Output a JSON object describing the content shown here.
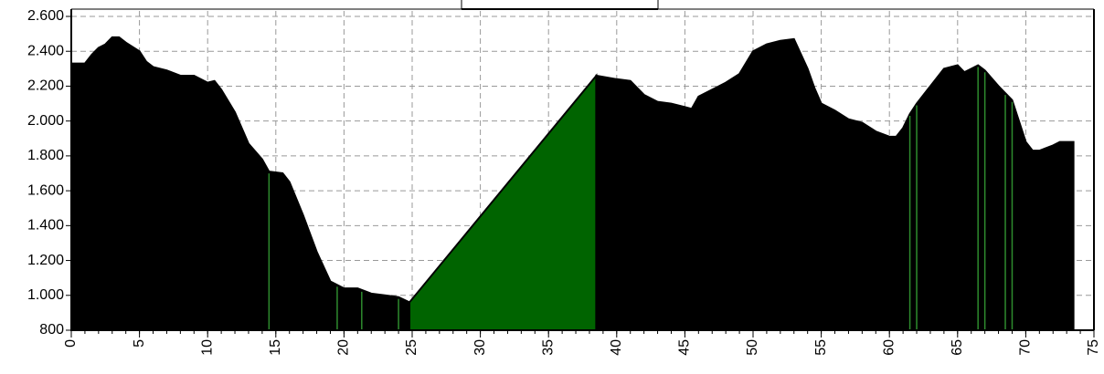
{
  "chart_data": {
    "type": "area",
    "series": [
      {
        "color": "#000000",
        "x": [
          0,
          1,
          1.5,
          2,
          2.5,
          3,
          3.5,
          4,
          5,
          5.5,
          6,
          7,
          8,
          9,
          10,
          10.5,
          11,
          12,
          13,
          14,
          14.5,
          15.5,
          16,
          17,
          18,
          19,
          20,
          21,
          22,
          23,
          24,
          24.8
        ],
        "values": [
          2330,
          2330,
          2380,
          2420,
          2440,
          2480,
          2480,
          2450,
          2400,
          2340,
          2310,
          2290,
          2260,
          2260,
          2220,
          2230,
          2180,
          2050,
          1870,
          1780,
          1710,
          1700,
          1650,
          1460,
          1250,
          1080,
          1040,
          1040,
          1010,
          1000,
          990,
          960
        ]
      },
      {
        "color": "#006400",
        "x": [
          24.8,
          38.5
        ],
        "values": [
          960,
          2260
        ]
      },
      {
        "color": "#000000",
        "x": [
          38.5,
          40,
          41,
          42,
          43,
          44,
          45,
          45.5,
          46,
          47,
          48,
          49,
          50,
          51,
          52,
          53,
          54,
          54.5,
          55,
          56,
          57,
          58,
          59,
          60,
          60.5,
          61,
          61.5,
          62,
          63,
          64,
          65,
          65.5,
          66,
          66.5,
          67,
          68,
          69,
          70,
          70.5,
          71,
          72,
          72.5,
          73.5
        ],
        "values": [
          2260,
          2240,
          2230,
          2150,
          2110,
          2100,
          2080,
          2070,
          2140,
          2180,
          2220,
          2270,
          2400,
          2440,
          2460,
          2470,
          2300,
          2190,
          2100,
          2060,
          2010,
          1990,
          1940,
          1910,
          1910,
          1960,
          2040,
          2100,
          2200,
          2300,
          2320,
          2280,
          2300,
          2320,
          2290,
          2200,
          2120,
          1880,
          1830,
          1830,
          1860,
          1880,
          1880
        ]
      }
    ],
    "markers": {
      "color": "#2e8b2e",
      "x": [
        14.5,
        19.5,
        21.3,
        24,
        61.5,
        62,
        66.5,
        67,
        68.5,
        69
      ]
    },
    "xlim": [
      0,
      75
    ],
    "ylim": [
      800,
      2600
    ],
    "xticks": [
      0,
      5,
      10,
      15,
      20,
      25,
      30,
      35,
      40,
      45,
      50,
      55,
      60,
      65,
      70,
      75
    ],
    "yticks": [
      {
        "value": 800,
        "label": "800"
      },
      {
        "value": 1000,
        "label": "1.000"
      },
      {
        "value": 1200,
        "label": "1.200"
      },
      {
        "value": 1400,
        "label": "1.400"
      },
      {
        "value": 1600,
        "label": "1.600"
      },
      {
        "value": 1800,
        "label": "1.800"
      },
      {
        "value": 2000,
        "label": "2.000"
      },
      {
        "value": 2200,
        "label": "2.200"
      },
      {
        "value": 2400,
        "label": "2.400"
      },
      {
        "value": 2600,
        "label": "2.600"
      }
    ],
    "grid": true
  }
}
